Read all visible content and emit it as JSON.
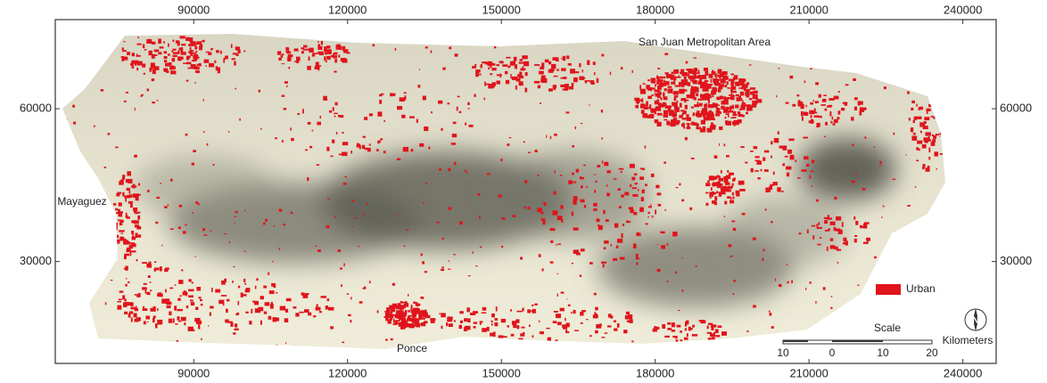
{
  "map": {
    "xlim": [
      63000,
      246500
    ],
    "ylim": [
      10000,
      77500
    ],
    "xticks": [
      90000,
      120000,
      150000,
      180000,
      210000,
      240000
    ],
    "yticks": [
      30000,
      60000
    ],
    "places": [
      "San Juan Metropolitan Area",
      "Mayaguez",
      "Ponce"
    ],
    "legend": {
      "label": "Urban",
      "color": "#e0141c"
    },
    "scale": {
      "title": "Scale",
      "labels": [
        "10",
        "0",
        "10",
        "20"
      ],
      "unit": "Kilometers"
    },
    "north": "N"
  }
}
